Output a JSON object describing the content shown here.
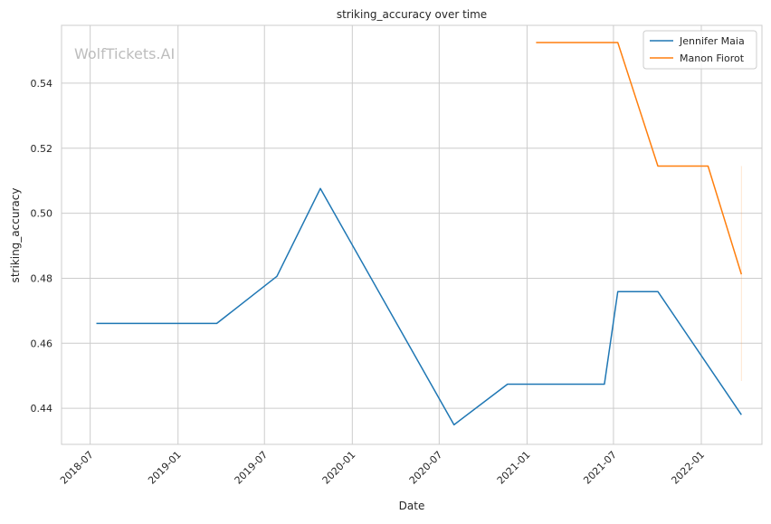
{
  "chart_data": {
    "type": "line",
    "title": "striking_accuracy over time",
    "xlabel": "Date",
    "ylabel": "striking_accuracy",
    "watermark": "WolfTickets.AI",
    "x_axis": {
      "type": "date",
      "range": [
        "2018-05-02",
        "2022-05-08"
      ],
      "ticks": [
        "2018-07-01",
        "2019-01-01",
        "2019-07-01",
        "2020-01-01",
        "2020-07-01",
        "2021-01-01",
        "2021-07-01",
        "2022-01-01"
      ],
      "tick_labels": [
        "2018-07",
        "2019-01",
        "2019-07",
        "2020-01",
        "2020-07",
        "2021-01",
        "2021-07",
        "2022-01"
      ]
    },
    "ylim": [
      0.4289,
      0.5578
    ],
    "yticks": [
      0.44,
      0.46,
      0.48,
      0.5,
      0.52,
      0.54
    ],
    "ytick_labels": [
      "0.44",
      "0.46",
      "0.48",
      "0.50",
      "0.52",
      "0.54"
    ],
    "grid": true,
    "legend_position": "top-right",
    "series": [
      {
        "name": "Jennifer Maia",
        "color": "#1f77b4",
        "points": [
          {
            "x": "2018-07-14",
            "y": 0.4661
          },
          {
            "x": "2019-03-23",
            "y": 0.4661
          },
          {
            "x": "2019-07-27",
            "y": 0.4806
          },
          {
            "x": "2019-10-26",
            "y": 0.5076
          },
          {
            "x": "2020-08-01",
            "y": 0.4349
          },
          {
            "x": "2020-11-21",
            "y": 0.4474
          },
          {
            "x": "2021-06-12",
            "y": 0.4474
          },
          {
            "x": "2021-07-10",
            "y": 0.4759
          },
          {
            "x": "2021-10-02",
            "y": 0.4759
          },
          {
            "x": "2022-03-26",
            "y": 0.438
          }
        ]
      },
      {
        "name": "Manon Fiorot",
        "color": "#ff7f0e",
        "points": [
          {
            "x": "2021-01-20",
            "y": 0.5525
          },
          {
            "x": "2021-07-10",
            "y": 0.5525
          },
          {
            "x": "2021-10-02",
            "y": 0.5145
          },
          {
            "x": "2022-01-15",
            "y": 0.5145
          },
          {
            "x": "2022-03-26",
            "y": 0.4812
          }
        ],
        "band": {
          "x": "2022-03-26",
          "low": 0.4484,
          "high": 0.5145
        }
      }
    ]
  }
}
